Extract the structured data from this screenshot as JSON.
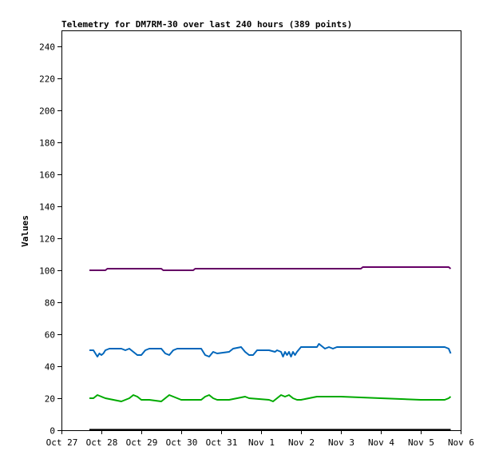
{
  "chart_data": {
    "type": "line",
    "title": "Telemetry for DM7RM-30 over last 240 hours (389 points)",
    "xlabel": "",
    "ylabel": "Values",
    "xlim": [
      0,
      10
    ],
    "ylim": [
      0,
      250
    ],
    "x_tick_values": [
      0,
      1,
      2,
      3,
      4,
      5,
      6,
      7,
      8,
      9,
      10
    ],
    "x_tick_labels": [
      "Oct 27",
      "Oct 28",
      "Oct 29",
      "Oct 30",
      "Oct 31",
      "Nov 1",
      "Nov 2",
      "Nov 3",
      "Nov 4",
      "Nov 5",
      "Nov 6"
    ],
    "y_ticks": [
      0,
      20,
      40,
      60,
      80,
      100,
      120,
      140,
      160,
      180,
      200,
      220,
      240
    ],
    "grid": false,
    "legend": "none",
    "series": [
      {
        "color": "#660066",
        "x": [
          0.7,
          1.1,
          1.15,
          2.5,
          2.55,
          3.3,
          3.35,
          6.5,
          7.5,
          7.55,
          8.75,
          8.8,
          9.7,
          9.75
        ],
        "values": [
          100,
          100,
          101,
          101,
          100,
          100,
          101,
          101,
          101,
          102,
          102,
          102,
          102,
          101
        ]
      },
      {
        "color": "#0066bb",
        "x": [
          0.7,
          0.8,
          0.85,
          0.9,
          0.95,
          1.0,
          1.05,
          1.1,
          1.2,
          1.5,
          1.6,
          1.7,
          1.9,
          2.0,
          2.1,
          2.2,
          2.5,
          2.6,
          2.7,
          2.8,
          2.9,
          3.5,
          3.6,
          3.7,
          3.8,
          3.9,
          4.2,
          4.3,
          4.5,
          4.6,
          4.7,
          4.8,
          4.9,
          5.2,
          5.35,
          5.4,
          5.5,
          5.55,
          5.6,
          5.65,
          5.7,
          5.75,
          5.8,
          5.85,
          5.9,
          6.0,
          6.4,
          6.45,
          6.5,
          6.6,
          6.7,
          6.8,
          6.9,
          9.0,
          9.6,
          9.7,
          9.75
        ],
        "values": [
          50,
          50,
          48,
          46,
          48,
          47,
          48,
          50,
          51,
          51,
          50,
          51,
          47,
          47,
          50,
          51,
          51,
          48,
          47,
          50,
          51,
          51,
          47,
          46,
          49,
          48,
          49,
          51,
          52,
          49,
          47,
          47,
          50,
          50,
          49,
          50,
          49,
          46,
          49,
          47,
          49,
          46,
          49,
          47,
          49,
          52,
          52,
          54,
          53,
          51,
          52,
          51,
          52,
          52,
          52,
          51,
          48
        ]
      },
      {
        "color": "#00aa00",
        "x": [
          0.7,
          0.8,
          0.9,
          1.0,
          1.1,
          1.3,
          1.5,
          1.7,
          1.8,
          1.9,
          2.0,
          2.2,
          2.5,
          2.6,
          2.7,
          2.8,
          2.9,
          3.0,
          3.5,
          3.6,
          3.7,
          3.8,
          3.9,
          4.0,
          4.2,
          4.4,
          4.6,
          4.7,
          5.2,
          5.3,
          5.4,
          5.5,
          5.6,
          5.7,
          5.8,
          5.9,
          6.0,
          6.4,
          6.5,
          7.0,
          8.0,
          9.0,
          9.6,
          9.7,
          9.75
        ],
        "values": [
          20,
          20,
          22,
          21,
          20,
          19,
          18,
          20,
          22,
          21,
          19,
          19,
          18,
          20,
          22,
          21,
          20,
          19,
          19,
          21,
          22,
          20,
          19,
          19,
          19,
          20,
          21,
          20,
          19,
          18,
          20,
          22,
          21,
          22,
          20,
          19,
          19,
          21,
          21,
          21,
          20,
          19,
          19,
          20,
          21
        ]
      },
      {
        "color": "#000000",
        "x": [
          0.7,
          9.75
        ],
        "values": [
          0.3,
          0.3
        ]
      }
    ]
  }
}
